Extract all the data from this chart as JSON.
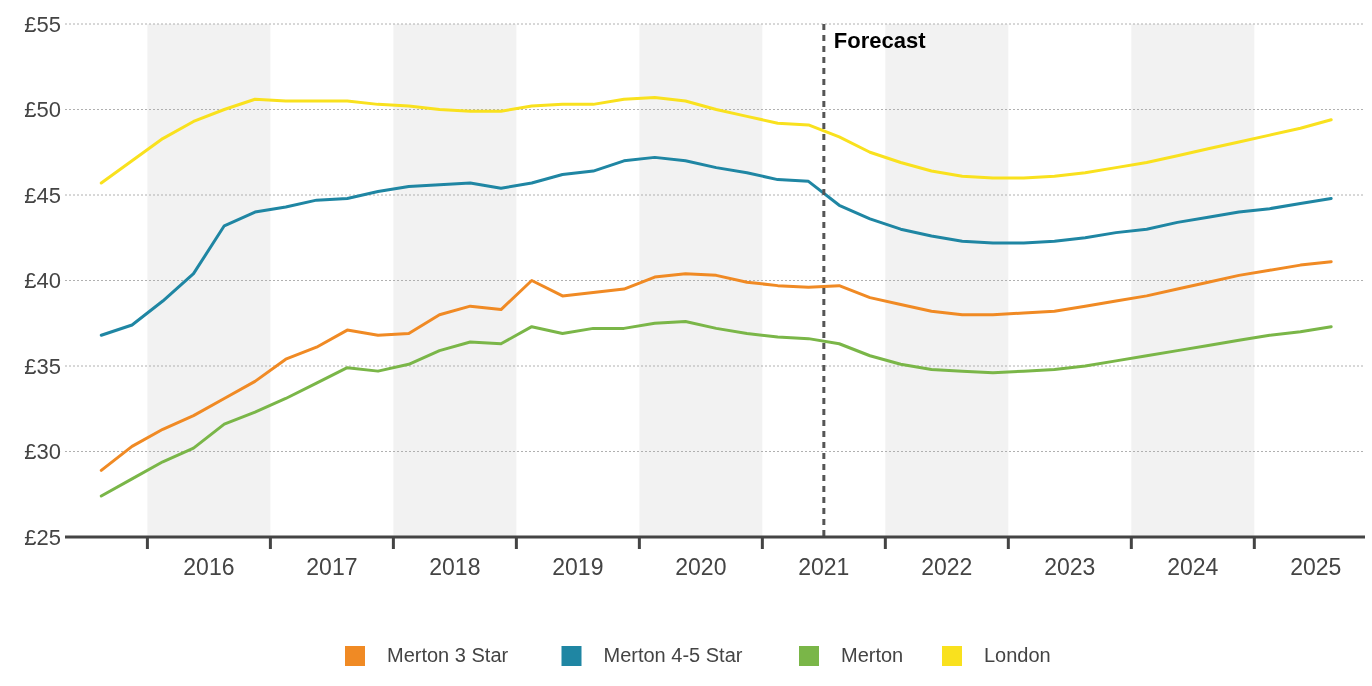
{
  "chart_data": {
    "type": "line",
    "x": [
      2015.125,
      2015.375,
      2015.625,
      2015.875,
      2016.125,
      2016.375,
      2016.625,
      2016.875,
      2017.125,
      2017.375,
      2017.625,
      2017.875,
      2018.125,
      2018.375,
      2018.625,
      2018.875,
      2019.125,
      2019.375,
      2019.625,
      2019.875,
      2020.125,
      2020.375,
      2020.625,
      2020.875,
      2021.125,
      2021.375,
      2021.625,
      2021.875,
      2022.125,
      2022.375,
      2022.625,
      2022.875,
      2023.125,
      2023.375,
      2023.625,
      2023.875,
      2024.125,
      2024.375,
      2024.625,
      2024.875,
      2025.125
    ],
    "series": [
      {
        "name": "Merton 3 Star",
        "color": "#f08a24",
        "values": [
          28.9,
          30.3,
          31.3,
          32.1,
          33.1,
          34.1,
          35.4,
          36.1,
          37.1,
          36.8,
          36.9,
          38.0,
          38.5,
          38.3,
          40.0,
          39.1,
          39.3,
          39.5,
          40.2,
          40.4,
          40.3,
          39.9,
          39.7,
          39.6,
          39.7,
          39.0,
          38.6,
          38.2,
          38.0,
          38.0,
          38.1,
          38.2,
          38.5,
          38.8,
          39.1,
          39.5,
          39.9,
          40.3,
          40.6,
          40.9,
          41.1
        ]
      },
      {
        "name": "Merton 4-5 Star",
        "color": "#1f86a3",
        "values": [
          36.8,
          37.4,
          38.8,
          40.4,
          43.2,
          44.0,
          44.3,
          44.7,
          44.8,
          45.2,
          45.5,
          45.6,
          45.7,
          45.4,
          45.7,
          46.2,
          46.4,
          47.0,
          47.2,
          47.0,
          46.6,
          46.3,
          45.9,
          45.8,
          44.4,
          43.6,
          43.0,
          42.6,
          42.3,
          42.2,
          42.2,
          42.3,
          42.5,
          42.8,
          43.0,
          43.4,
          43.7,
          44.0,
          44.2,
          44.5,
          44.8
        ]
      },
      {
        "name": "Merton",
        "color": "#7ab648",
        "values": [
          27.4,
          28.4,
          29.4,
          30.2,
          31.6,
          32.3,
          33.1,
          34.0,
          34.9,
          34.7,
          35.1,
          35.9,
          36.4,
          36.3,
          37.3,
          36.9,
          37.2,
          37.2,
          37.5,
          37.6,
          37.2,
          36.9,
          36.7,
          36.6,
          36.3,
          35.6,
          35.1,
          34.8,
          34.7,
          34.6,
          34.7,
          34.8,
          35.0,
          35.3,
          35.6,
          35.9,
          36.2,
          36.5,
          36.8,
          37.0,
          37.3
        ]
      },
      {
        "name": "London",
        "color": "#f9e11e",
        "values": [
          45.7,
          47.0,
          48.3,
          49.3,
          50.0,
          50.6,
          50.5,
          50.5,
          50.5,
          50.3,
          50.2,
          50.0,
          49.9,
          49.9,
          50.2,
          50.3,
          50.3,
          50.6,
          50.7,
          50.5,
          50.0,
          49.6,
          49.2,
          49.1,
          48.4,
          47.5,
          46.9,
          46.4,
          46.1,
          46.0,
          46.0,
          46.1,
          46.3,
          46.6,
          46.9,
          47.3,
          47.7,
          48.1,
          48.5,
          48.9,
          49.4
        ]
      }
    ],
    "xlim": [
      2014.83,
      2025.4
    ],
    "xticks": [
      {
        "value": 2015.5,
        "label": null
      },
      2016,
      {
        "value": 2016.5,
        "label": null
      },
      2017,
      {
        "value": 2017.5,
        "label": null
      },
      2018,
      {
        "value": 2018.5,
        "label": null
      },
      2019,
      {
        "value": 2019.5,
        "label": null
      },
      2020,
      {
        "value": 2020.5,
        "label": null
      },
      2021,
      {
        "value": 2021.5,
        "label": null
      },
      2022,
      {
        "value": 2022.5,
        "label": null
      },
      2023,
      {
        "value": 2023.5,
        "label": null
      },
      2024,
      {
        "value": 2024.5,
        "label": null
      },
      2025
    ],
    "ylim": [
      25,
      55
    ],
    "yticks": [
      {
        "value": 25,
        "label": "£25"
      },
      {
        "value": 30,
        "label": "£30"
      },
      {
        "value": 35,
        "label": "£35"
      },
      {
        "value": 40,
        "label": "£40"
      },
      {
        "value": 45,
        "label": "£45"
      },
      {
        "value": 50,
        "label": "£50"
      },
      {
        "value": 55,
        "label": "£55"
      }
    ],
    "grid": "y",
    "bands": [
      {
        "axis": "x",
        "from": 2015.5,
        "to": 2016.5,
        "color": "#f2f2f2"
      },
      {
        "axis": "x",
        "from": 2017.5,
        "to": 2018.5,
        "color": "#f2f2f2"
      },
      {
        "axis": "x",
        "from": 2019.5,
        "to": 2020.5,
        "color": "#f2f2f2"
      },
      {
        "axis": "x",
        "from": 2021.5,
        "to": 2022.5,
        "color": "#f2f2f2"
      },
      {
        "axis": "x",
        "from": 2023.5,
        "to": 2024.5,
        "color": "#f2f2f2"
      }
    ],
    "ref_lines": [
      {
        "axis": "x",
        "value": 2021,
        "label": "Forecast",
        "color": "#555555",
        "line_style": "dashed"
      }
    ],
    "legend": "bottom",
    "marker": "none",
    "line_style": "solid"
  }
}
